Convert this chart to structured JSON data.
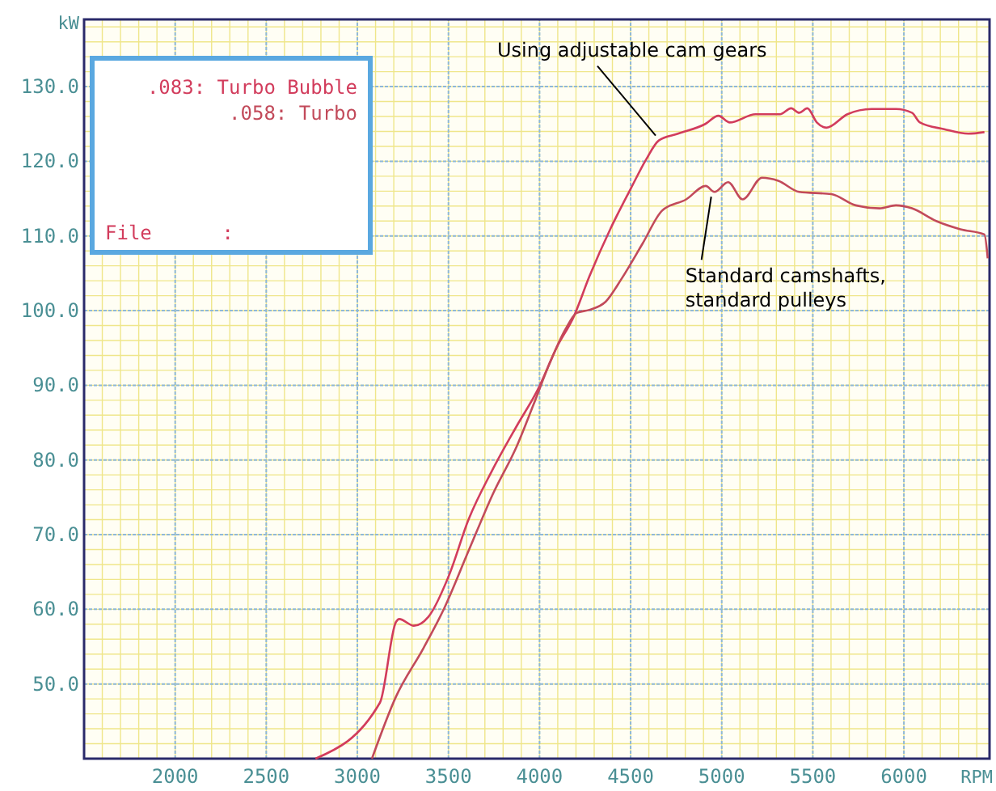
{
  "chart_data": {
    "type": "line",
    "xlabel": "RPM",
    "ylabel": "kW",
    "xlim": [
      1500,
      6470
    ],
    "ylim": [
      40,
      139
    ],
    "xticks": [
      2000,
      2500,
      3000,
      3500,
      4000,
      4500,
      5000,
      5500,
      6000
    ],
    "yticks": [
      {
        "value": 50,
        "label": "50.0"
      },
      {
        "value": 60,
        "label": "60.0"
      },
      {
        "value": 70,
        "label": "70.0"
      },
      {
        "value": 80,
        "label": "80.0"
      },
      {
        "value": 90,
        "label": "90.0"
      },
      {
        "value": 100,
        "label": "100.0"
      },
      {
        "value": 110,
        "label": "110.0"
      },
      {
        "value": 120,
        "label": "120.0"
      },
      {
        "value": 130,
        "label": "130.0"
      }
    ],
    "grid": true,
    "legend": "top left",
    "marker": "none",
    "line_style": "solid",
    "series": [
      {
        "name": ".083: Turbo Bubble",
        "color": "#d23c5c",
        "x": [
          2770,
          3124,
          3212,
          3230,
          3310,
          3390,
          3504,
          3610,
          3740,
          3876,
          3990,
          4097,
          4186,
          4274,
          4390,
          4500,
          4584,
          4655,
          4760,
          4910,
          4982,
          5044,
          5186,
          5320,
          5381,
          5425,
          5470,
          5522,
          5575,
          5690,
          5823,
          5956,
          6044,
          6088,
          6221,
          6354,
          6442
        ],
        "values": [
          40,
          47.5,
          58.3,
          58.7,
          57.8,
          59,
          64.6,
          72,
          78.6,
          84.6,
          89.4,
          95.2,
          99.1,
          104.6,
          111,
          116.3,
          120.2,
          122.8,
          123.7,
          125,
          126.1,
          125.2,
          126.3,
          126.3,
          127.1,
          126.5,
          127.1,
          125.2,
          124.5,
          126.3,
          127,
          127,
          126.5,
          125.2,
          124.3,
          123.7,
          123.9
        ]
      },
      {
        "name": ".058: Turbo",
        "color": "#c24a5a",
        "x": [
          3080,
          3212,
          3363,
          3478,
          3610,
          3743,
          3876,
          3965,
          4053,
          4142,
          4204,
          4274,
          4363,
          4451,
          4566,
          4673,
          4805,
          4912,
          4960,
          5035,
          5115,
          5221,
          5310,
          5425,
          5602,
          5735,
          5867,
          5956,
          6044,
          6177,
          6310,
          6442,
          6460
        ],
        "values": [
          40,
          48.3,
          54.8,
          60.2,
          67.8,
          75.4,
          81.9,
          87.3,
          92.8,
          97.5,
          99.7,
          100.1,
          101.2,
          104.3,
          109,
          113.4,
          114.9,
          116.7,
          115.9,
          117.2,
          114.9,
          117.8,
          117.4,
          115.9,
          115.6,
          114.1,
          113.7,
          114.1,
          113.7,
          112,
          110.9,
          110.2,
          107
        ]
      }
    ],
    "annotations": [
      {
        "text": "Using adjustable cam gears",
        "x": 4655,
        "y": 122.8
      },
      {
        "text": "Standard camshafts, standard pulleys",
        "x": 4960,
        "y": 115.9
      },
      "File      :"
    ]
  }
}
